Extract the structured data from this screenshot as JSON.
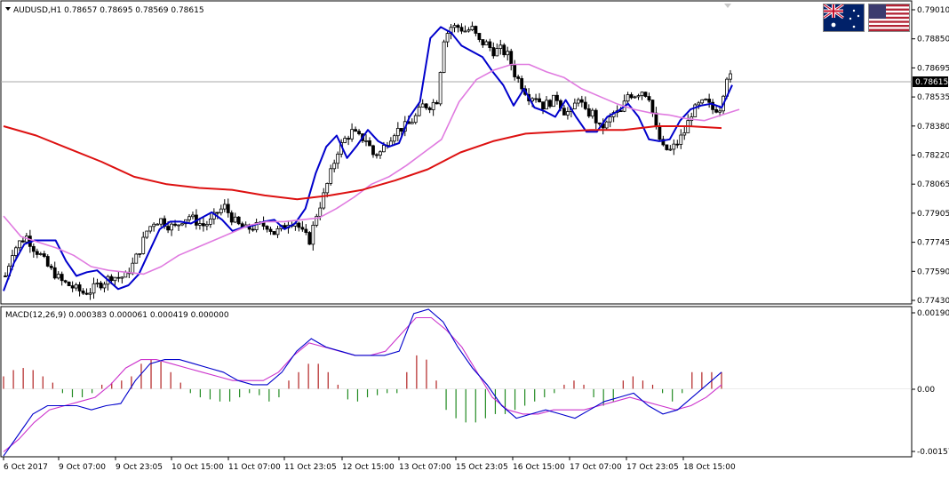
{
  "header": {
    "symbol_text": "AUDUSD,H1  0.78657 0.78695 0.78569 0.78615",
    "current_price": "0.78615"
  },
  "flags": {
    "base": "australia-flag",
    "quote": "usa-flag"
  },
  "colors": {
    "background": "#ffffff",
    "bull_bar": "#000000",
    "bear_bar": "#000000",
    "fast_ma": "#0000cc",
    "mid_ma": "#e07be0",
    "slow_ma": "#dd1111",
    "hist_up": "#b22222",
    "hist_down": "#228b22",
    "macd_line": "#0000cc",
    "signal_line": "#cc33cc",
    "price_line": "#aaaaaa"
  },
  "macd_header": "MACD(12,26,9) 0.000383 0.000061 0.000419 0.000000",
  "chart_data": [
    {
      "type": "candlestick",
      "title": "AUDUSD,H1",
      "ylim": [
        0.7743,
        0.7903
      ],
      "y_ticks": [
        "0.79010",
        "0.78850",
        "0.78695",
        "0.78535",
        "0.78380",
        "0.78220",
        "0.78065",
        "0.77905",
        "0.77745",
        "0.77590",
        "0.77430"
      ],
      "x_ticks": [
        "6 Oct 2017",
        "9 Oct 07:00",
        "9 Oct 23:05",
        "10 Oct 15:00",
        "11 Oct 07:00",
        "11 Oct 23:05",
        "12 Oct 15:00",
        "13 Oct 07:00",
        "15 Oct 23:05",
        "16 Oct 15:00",
        "17 Oct 07:00",
        "17 Oct 23:05",
        "18 Oct 15:00"
      ],
      "close_profile": [
        0.7757,
        0.777,
        0.7775,
        0.7778,
        0.7772,
        0.7768,
        0.7762,
        0.7758,
        0.7754,
        0.7752,
        0.775,
        0.7748,
        0.7749,
        0.7752,
        0.7754,
        0.7757,
        0.7756,
        0.7757,
        0.7763,
        0.7771,
        0.7781,
        0.7786,
        0.7787,
        0.7784,
        0.7783,
        0.7787,
        0.7789,
        0.7786,
        0.7784,
        0.7786,
        0.7791,
        0.7794,
        0.7788,
        0.7784,
        0.7782,
        0.7783,
        0.7784,
        0.7784,
        0.778,
        0.7782,
        0.7786,
        0.7786,
        0.778,
        0.7776,
        0.779,
        0.78,
        0.7812,
        0.7824,
        0.783,
        0.7834,
        0.7831,
        0.783,
        0.7822,
        0.7823,
        0.7829,
        0.7834,
        0.7836,
        0.7838,
        0.7842,
        0.7848,
        0.7848,
        0.7851,
        0.7884,
        0.789,
        0.789,
        0.7888,
        0.7889,
        0.7882,
        0.7881,
        0.7877,
        0.7878,
        0.7875,
        0.7865,
        0.7859,
        0.7853,
        0.7853,
        0.7848,
        0.785,
        0.7852,
        0.7845,
        0.7844,
        0.7853,
        0.7844,
        0.7844,
        0.7836,
        0.7838,
        0.7844,
        0.7844,
        0.7854,
        0.7854,
        0.7856,
        0.7853,
        0.7835,
        0.7825,
        0.7824,
        0.7828,
        0.7834,
        0.7844,
        0.7848,
        0.785,
        0.7846,
        0.7847,
        0.7864,
        0.7862
      ],
      "overlays": [
        {
          "name": "",
          "color": "#0000cc",
          "values": [
            0.7749,
            0.7764,
            0.7774,
            0.7776,
            0.7776,
            0.7776,
            0.7765,
            0.7757,
            0.7759,
            0.776,
            0.7755,
            0.775,
            0.7752,
            0.7758,
            0.777,
            0.7782,
            0.7786,
            0.7786,
            0.7785,
            0.7788,
            0.7791,
            0.7787,
            0.7781,
            0.7783,
            0.7784,
            0.7786,
            0.7787,
            0.7782,
            0.7785,
            0.7793,
            0.7812,
            0.7826,
            0.7832,
            0.782,
            0.7827,
            0.7835,
            0.7829,
            0.7826,
            0.7828,
            0.7842,
            0.785,
            0.7884,
            0.789,
            0.7887,
            0.788,
            0.7877,
            0.7874,
            0.7866,
            0.7859,
            0.7848,
            0.7857,
            0.7847,
            0.7845,
            0.7842,
            0.7851,
            0.7842,
            0.7834,
            0.7834,
            0.7842,
            0.7845,
            0.7849,
            0.7842,
            0.783,
            0.7829,
            0.783,
            0.784,
            0.7846,
            0.7848,
            0.7849,
            0.7847,
            0.7859
          ]
        },
        {
          "name": "",
          "color": "#e07be0",
          "values": [
            0.7789,
            0.7778,
            0.7775,
            0.7772,
            0.7768,
            0.7762,
            0.776,
            0.7759,
            0.7758,
            0.7762,
            0.7768,
            0.7772,
            0.7776,
            0.778,
            0.7784,
            0.7786,
            0.7786,
            0.7787,
            0.7788,
            0.7793,
            0.7799,
            0.7806,
            0.781,
            0.7816,
            0.7823,
            0.783,
            0.785,
            0.7862,
            0.7867,
            0.787,
            0.787,
            0.7866,
            0.7863,
            0.7857,
            0.7853,
            0.7849,
            0.7846,
            0.7844,
            0.7843,
            0.7841,
            0.784,
            0.7843,
            0.7846
          ]
        },
        {
          "name": "",
          "color": "#dd1111",
          "values": [
            0.7837,
            0.7832,
            0.7825,
            0.7818,
            0.781,
            0.7806,
            0.7804,
            0.7803,
            0.78,
            0.7798,
            0.78,
            0.7803,
            0.7808,
            0.7814,
            0.7823,
            0.7829,
            0.7833,
            0.7834,
            0.7835,
            0.7835,
            0.7837,
            0.7837,
            0.7836
          ]
        }
      ]
    },
    {
      "type": "macd",
      "title": "MACD(12,26,9) 0.000383 0.000061 0.000419 0.000000",
      "ylim": [
        -0.001577,
        0.001901
      ],
      "y_ticks": [
        "0.001901",
        "0.00",
        "-0.001577"
      ],
      "histogram": [
        0.0003,
        0.00045,
        0.0005,
        0.00045,
        0.0003,
        0.00015,
        -0.0001,
        -0.0002,
        -0.0002,
        -0.0001,
        0.0001,
        0.00015,
        0.0002,
        0.0003,
        0.0006,
        0.0007,
        0.00065,
        0.0004,
        0.00015,
        -0.0001,
        -0.0002,
        -0.00025,
        -0.0003,
        -0.0003,
        -0.0002,
        -0.0001,
        -0.00015,
        -0.0003,
        -0.0002,
        0.0002,
        0.0004,
        0.0006,
        0.0006,
        0.0004,
        0.0001,
        -0.00025,
        -0.0003,
        -0.0002,
        -0.00015,
        -0.0001,
        -0.0001,
        0.0004,
        0.0008,
        0.0007,
        0.0002,
        -0.0005,
        -0.0007,
        -0.0008,
        -0.0008,
        -0.0007,
        -0.0006,
        -0.0006,
        -0.0005,
        -0.0004,
        -0.0003,
        -0.0002,
        -0.0001,
        0.0001,
        0.0002,
        0.0001,
        -0.0002,
        -0.0004,
        -0.0003,
        0.0002,
        0.0003,
        0.0002,
        0.0001,
        -0.0001,
        -0.0003,
        -0.0001,
        0.0004,
        0.0004,
        0.0004,
        0.0004
      ],
      "macd": [
        -0.0016,
        -0.0011,
        -0.0006,
        -0.0004,
        -0.0004,
        -0.0004,
        -0.0005,
        -0.0004,
        -0.00035,
        0.0002,
        0.0006,
        0.0007,
        0.0007,
        0.0006,
        0.0005,
        0.0004,
        0.0002,
        0.0001,
        0.0001,
        0.0004,
        0.0009,
        0.0012,
        0.001,
        0.0009,
        0.0008,
        0.0008,
        0.0008,
        0.0009,
        0.0018,
        0.0019,
        0.0016,
        0.001,
        0.0005,
        0.0001,
        -0.0004,
        -0.0007,
        -0.0006,
        -0.0005,
        -0.0006,
        -0.0007,
        -0.0005,
        -0.0003,
        -0.0002,
        -0.0001,
        -0.0004,
        -0.0006,
        -0.0005,
        -0.0002,
        0.0001,
        0.0004
      ],
      "signal": [
        -0.0015,
        -0.0012,
        -0.0008,
        -0.0005,
        -0.0004,
        -0.0003,
        -0.0002,
        0.0001,
        0.0005,
        0.0007,
        0.0007,
        0.0006,
        0.0005,
        0.0004,
        0.0003,
        0.0002,
        0.0002,
        0.0002,
        0.0004,
        0.0008,
        0.0011,
        0.001,
        0.0009,
        0.0008,
        0.0008,
        0.0009,
        0.0013,
        0.0017,
        0.0017,
        0.0014,
        0.001,
        0.0004,
        -0.0002,
        -0.0005,
        -0.0006,
        -0.0006,
        -0.0005,
        -0.0005,
        -0.0005,
        -0.0004,
        -0.0003,
        -0.0002,
        -0.0003,
        -0.0004,
        -0.0005,
        -0.0004,
        -0.0002,
        0.0001
      ]
    }
  ]
}
